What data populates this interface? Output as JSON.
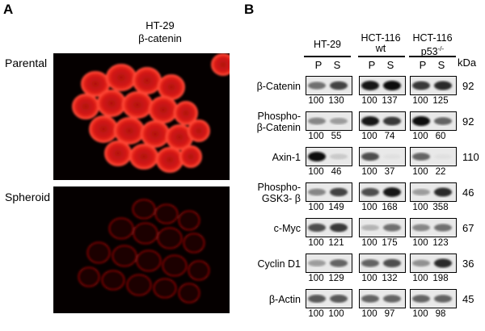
{
  "panelA": {
    "letter": "A",
    "title_line1": "HT-29",
    "title_line2": "β-catenin",
    "rows": [
      "Parental",
      "Spheroid"
    ]
  },
  "panelB": {
    "letter": "B",
    "unit": "kDa",
    "cell_lines": [
      {
        "line1": "HT-29",
        "line2": ""
      },
      {
        "line1": "HCT-116",
        "line2": "wt"
      },
      {
        "line1": "HCT-116",
        "line2": "p53",
        "sup": "-/-"
      }
    ],
    "lane_labels": [
      "P",
      "S"
    ],
    "proteins": [
      {
        "label1": "β-Catenin",
        "label2": "",
        "kda": "92",
        "values": [
          "100",
          "130",
          "100",
          "137",
          "100",
          "125"
        ]
      },
      {
        "label1": "Phospho-",
        "label2": "β-Catenin",
        "kda": "92",
        "values": [
          "100",
          "55",
          "100",
          "74",
          "100",
          "60"
        ]
      },
      {
        "label1": "Axin-1",
        "label2": "",
        "kda": "110",
        "values": [
          "100",
          "46",
          "100",
          "37",
          "100",
          "22"
        ]
      },
      {
        "label1": "Phospho-",
        "label2": "GSK3- β",
        "kda": "46",
        "values": [
          "100",
          "149",
          "100",
          "168",
          "100",
          "358"
        ]
      },
      {
        "label1": "c-Myc",
        "label2": "",
        "kda": "67",
        "values": [
          "100",
          "121",
          "100",
          "175",
          "100",
          "123"
        ]
      },
      {
        "label1": "Cyclin D1",
        "label2": "",
        "kda": "36",
        "values": [
          "100",
          "129",
          "100",
          "132",
          "100",
          "198"
        ]
      },
      {
        "label1": "β-Actin",
        "label2": "",
        "kda": "45",
        "values": [
          "100",
          "100",
          "100",
          "97",
          "100",
          "98"
        ]
      }
    ]
  }
}
